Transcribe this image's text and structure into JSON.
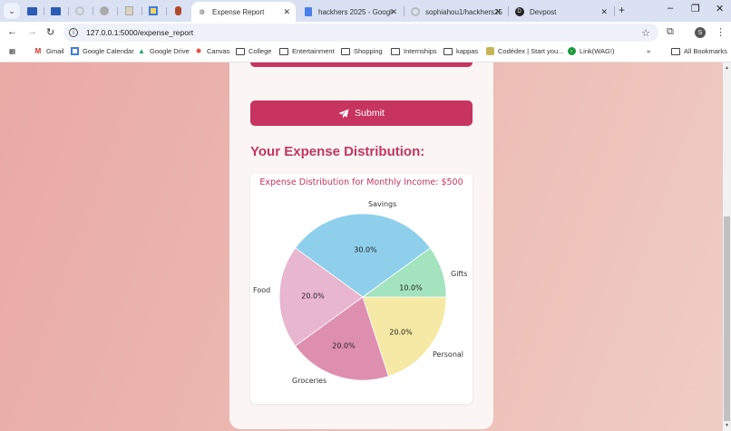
{
  "browser": {
    "pinned_tabs": [
      {
        "icon": "dell-icon",
        "color": "#2b5bb5"
      },
      {
        "icon": "dell-icon",
        "color": "#2b5bb5"
      },
      {
        "icon": "github-icon",
        "color": "#bbbbbb"
      },
      {
        "icon": "globe-icon",
        "color": "#999999"
      },
      {
        "icon": "doc-icon",
        "color": "#b3a98a"
      },
      {
        "icon": "calendar-icon",
        "color": "#3f7de0"
      },
      {
        "icon": "bear-icon",
        "color": "#b04a2a"
      }
    ],
    "tabs": [
      {
        "title": "Expense Report",
        "icon": "globe-icon",
        "active": true
      },
      {
        "title": "hackhers 2025 - Google",
        "icon": "docs-icon",
        "active": false
      },
      {
        "title": "sophiahou1/hackhers25",
        "icon": "github-icon",
        "active": false
      },
      {
        "title": "Devpost",
        "icon": "devpost-icon",
        "active": false
      }
    ],
    "url": "127.0.0.1:5000/expense_report",
    "profile_initial": "S",
    "bookmarks": [
      {
        "label": "Gmail",
        "icon": "gmail-icon"
      },
      {
        "label": "Google Calendar",
        "icon": "calendar-icon"
      },
      {
        "label": "Google Drive",
        "icon": "drive-icon"
      },
      {
        "label": "Canvas",
        "icon": "canvas-icon"
      },
      {
        "label": "College",
        "icon": "folder-icon"
      },
      {
        "label": "Entertainment",
        "icon": "folder-icon"
      },
      {
        "label": "Shopping",
        "icon": "folder-icon"
      },
      {
        "label": "Internships",
        "icon": "folder-icon"
      },
      {
        "label": "kappas",
        "icon": "folder-icon"
      },
      {
        "label": "Codédex | Start you...",
        "icon": "codedex-icon"
      },
      {
        "label": "Link(WAG!)",
        "icon": "link-icon"
      }
    ],
    "overflow_label": "»",
    "all_bookmarks_label": "All Bookmarks"
  },
  "page": {
    "submit_label": "Submit",
    "heading": "Your Expense Distribution:",
    "colors": {
      "accent": "#c7345f",
      "heading": "#c0385f"
    }
  },
  "chart_data": {
    "type": "pie",
    "title": "Expense Distribution for Monthly Income: $500",
    "categories": [
      "Savings",
      "Food",
      "Groceries",
      "Personal",
      "Gifts"
    ],
    "values": [
      30.0,
      20.0,
      20.0,
      20.0,
      10.0
    ],
    "labels_pct": [
      "30.0%",
      "20.0%",
      "20.0%",
      "20.0%",
      "10.0%"
    ],
    "colors": [
      "#8ecfec",
      "#e8b6ce",
      "#de8fb0",
      "#f5e9a5",
      "#a3e3bd"
    ],
    "start_angle_deg": 36,
    "direction": "counterclockwise"
  }
}
